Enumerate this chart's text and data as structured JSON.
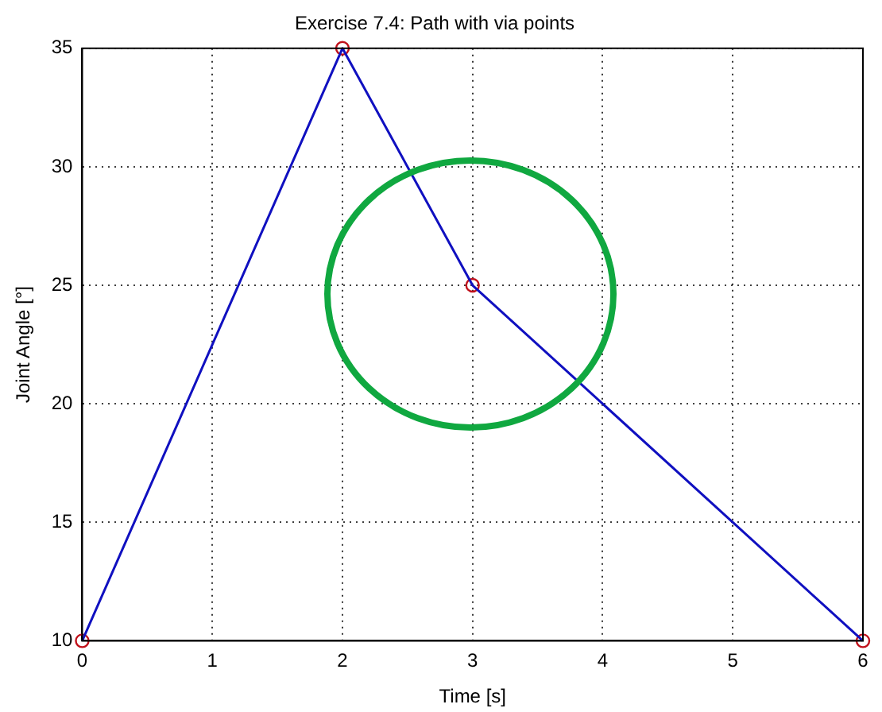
{
  "chart_data": {
    "type": "line",
    "title": "Exercise 7.4: Path with via points",
    "xlabel": "Time [s]",
    "ylabel": "Joint Angle [°]",
    "x": [
      0,
      2,
      3,
      6
    ],
    "series": [
      {
        "color": "#1010c0",
        "values": [
          10,
          35,
          25,
          10
        ],
        "marker": "none",
        "line_style": "solid"
      },
      {
        "type": "scatter",
        "color": "#c0101a",
        "values": [
          10,
          35,
          25,
          10
        ],
        "marker": "circle"
      }
    ],
    "xlim": [
      0,
      6
    ],
    "xticks": [
      0,
      1,
      2,
      3,
      4,
      5,
      6
    ],
    "ylim": [
      10,
      35
    ],
    "yticks": [
      10,
      15,
      20,
      25,
      30,
      35
    ],
    "grid": true,
    "legend": false
  }
}
